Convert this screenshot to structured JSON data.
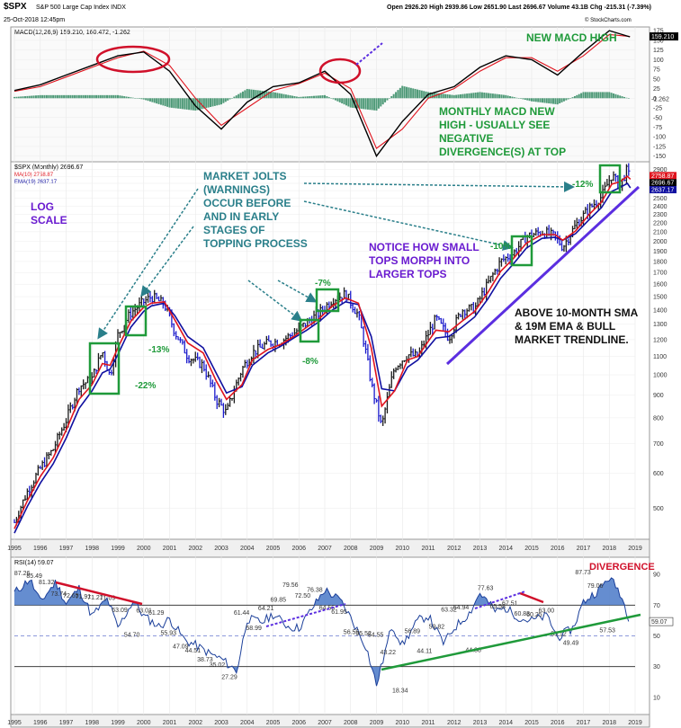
{
  "header": {
    "symbol": "$SPX",
    "name": "S&P 500 Large Cap Index INDX",
    "date": "25-Oct-2018 12:45pm",
    "ohlc": "Open 2926.20  High 2939.86  Low 2651.90  Last 2696.67  Volume 43.1B  Chg -215.31 (-7.39%)",
    "credit": "© StockCharts.com"
  },
  "panels": {
    "macd": {
      "legend": "MACD(12,26,9) 159.210, 160.472, -1.262",
      "last_label": "159.210",
      "hist_label": "-1.262",
      "ticks": [
        "175",
        "150",
        "125",
        "100",
        "75",
        "50",
        "25",
        "0",
        "-25",
        "-50",
        "-75",
        "-100",
        "-125",
        "-150"
      ],
      "notes": [
        "NEW MACD HIGH",
        "MONTHLY MACD NEW",
        "HIGH - USUALLY SEE",
        "NEGATIVE",
        "DIVERGENCE(S) AT TOP"
      ]
    },
    "price": {
      "legend_main": "$SPX (Monthly) 2696.67",
      "legend_sma": "MA(10) 2758.87",
      "legend_ema": "EMA(19) 2637.17",
      "last_labels": [
        "2758.87",
        "2696.67",
        "2637.17"
      ],
      "ticks": [
        "2900",
        "2800",
        "2700",
        "2600",
        "2500",
        "2400",
        "2300",
        "2200",
        "2100",
        "2000",
        "1900",
        "1800",
        "1700",
        "1600",
        "1500",
        "1400",
        "1300",
        "1200",
        "1100",
        "1000",
        "900",
        "800",
        "700",
        "600",
        "500"
      ],
      "log_note": [
        "LOG",
        "SCALE"
      ],
      "jolts_note": [
        "MARKET JOLTS",
        "(WARNINGS)",
        "OCCUR BEFORE",
        "AND IN EARLY",
        "STAGES OF",
        "TOPPING PROCESS"
      ],
      "morph_note": [
        "NOTICE HOW SMALL",
        "TOPS MORPH INTO",
        "LARGER TOPS"
      ],
      "trend_note": [
        "ABOVE 10-MONTH SMA",
        "& 19M EMA & BULL",
        "MARKET TRENDLINE."
      ],
      "pct_labels": [
        "-22%",
        "-13%",
        "-8%",
        "-7%",
        "-10%",
        "-12%"
      ]
    },
    "rsi": {
      "legend": "RSI(14) 59.07",
      "last_label": "59.07",
      "title_note": "DIVERGENCE",
      "ticks": [
        "90",
        "70",
        "50",
        "30",
        "10"
      ],
      "value_labels": [
        "87.26",
        "85.49",
        "81.32",
        "73.74",
        "72.65",
        "71.91",
        "71.21",
        "71.09",
        "63.09",
        "54.70",
        "63.01",
        "61.29",
        "55.93",
        "47.09",
        "44.51",
        "38.73",
        "35.02",
        "27.29",
        "61.44",
        "58.99",
        "64.21",
        "69.85",
        "79.56",
        "72.50",
        "76.38",
        "64.55",
        "61.95",
        "56.55",
        "55.52",
        "54.55",
        "43.22",
        "18.34",
        "56.89",
        "44.11",
        "59.82",
        "63.32",
        "64.94",
        "44.88",
        "77.63",
        "65.58",
        "67.51",
        "60.83",
        "60.25",
        "63.00",
        "55.12",
        "49.49",
        "87.73",
        "79.06",
        "57.53"
      ]
    }
  },
  "x_axis_years": [
    "1995",
    "1996",
    "1997",
    "1998",
    "1999",
    "2000",
    "2001",
    "2002",
    "2003",
    "2004",
    "2005",
    "2006",
    "2007",
    "2008",
    "2009",
    "2010",
    "2011",
    "2012",
    "2013",
    "2014",
    "2015",
    "2016",
    "2017",
    "2018",
    "2019"
  ],
  "colors": {
    "price_up": "#1a1a1a",
    "price_down": "#1a1acc",
    "sma10": "#e0141e",
    "ema19": "#1010a0",
    "macd_line": "#000000",
    "signal_line": "#e0141e",
    "histogram": "#4f9a78",
    "rsi_line": "#1b3f9a",
    "rsi_fill": "#4a79c8",
    "annotation_green": "#1f9a3a",
    "annotation_teal": "#2a7f8a",
    "annotation_purple": "#6a1bd0",
    "trendline": "#5b2ee0",
    "highlight_red": "#d0102a"
  },
  "chart_data": [
    {
      "type": "line",
      "title": "MACD(12,26,9)",
      "ylim": [
        -160,
        180
      ],
      "x": [
        1995,
        1996,
        1997,
        1998,
        1999,
        2000,
        2001,
        2002,
        2003,
        2004,
        2005,
        2006,
        2007,
        2008,
        2009,
        2010,
        2011,
        2012,
        2013,
        2014,
        2015,
        2016,
        2017,
        2018,
        2018.8
      ],
      "series": [
        {
          "name": "MACD",
          "values": [
            20,
            35,
            60,
            85,
            110,
            120,
            70,
            -20,
            -80,
            -10,
            30,
            40,
            70,
            10,
            -150,
            -60,
            10,
            30,
            80,
            110,
            100,
            60,
            120,
            175,
            159
          ]
        },
        {
          "name": "Signal",
          "values": [
            18,
            30,
            55,
            80,
            105,
            122,
            85,
            0,
            -70,
            -25,
            20,
            38,
            65,
            25,
            -130,
            -80,
            0,
            25,
            70,
            105,
            105,
            70,
            110,
            165,
            160
          ]
        }
      ]
    },
    {
      "type": "line",
      "title": "$SPX (Monthly)",
      "ylim": [
        430,
        2950
      ],
      "scale": "log",
      "x": [
        1995,
        1995.5,
        1996,
        1996.5,
        1997,
        1997.5,
        1998,
        1998.4,
        1998.7,
        1999,
        1999.5,
        2000,
        2000.3,
        2000.8,
        2001.2,
        2001.7,
        2002.3,
        2002.8,
        2003.2,
        2003.8,
        2004.2,
        2004.8,
        2005.3,
        2005.8,
        2006.3,
        2006.8,
        2007.3,
        2007.8,
        2008.3,
        2008.8,
        2009.2,
        2009.7,
        2010.2,
        2010.6,
        2011.3,
        2011.8,
        2012.3,
        2012.8,
        2013.3,
        2013.8,
        2014.3,
        2014.8,
        2015.4,
        2015.9,
        2016.2,
        2016.7,
        2017.2,
        2017.7,
        2018.1,
        2018.4,
        2018.7,
        2018.82
      ],
      "series": [
        {
          "name": "$SPX",
          "values": [
            465,
            545,
            615,
            680,
            790,
            940,
            980,
            1130,
            990,
            1230,
            1380,
            1460,
            1500,
            1440,
            1250,
            1100,
            1050,
            880,
            820,
            1030,
            1120,
            1180,
            1190,
            1240,
            1310,
            1380,
            1480,
            1520,
            1360,
            950,
            760,
            1040,
            1110,
            1100,
            1340,
            1210,
            1400,
            1410,
            1600,
            1800,
            1880,
            2050,
            2100,
            2050,
            1940,
            2170,
            2360,
            2520,
            2820,
            2650,
            2910,
            2697
          ]
        },
        {
          "name": "MA(10)",
          "values": [
            450,
            520,
            590,
            650,
            750,
            880,
            950,
            1060,
            1050,
            1150,
            1320,
            1420,
            1450,
            1460,
            1330,
            1180,
            1120,
            970,
            880,
            950,
            1080,
            1140,
            1170,
            1220,
            1280,
            1340,
            1430,
            1490,
            1450,
            1150,
            850,
            920,
            1080,
            1100,
            1260,
            1250,
            1320,
            1390,
            1530,
            1710,
            1830,
            1980,
            2070,
            2070,
            2010,
            2110,
            2290,
            2450,
            2690,
            2720,
            2800,
            2759
          ]
        },
        {
          "name": "EMA(19)",
          "values": [
            440,
            505,
            570,
            630,
            720,
            840,
            920,
            1010,
            1030,
            1110,
            1280,
            1390,
            1430,
            1450,
            1360,
            1220,
            1150,
            1010,
            910,
            940,
            1050,
            1120,
            1160,
            1210,
            1260,
            1320,
            1400,
            1460,
            1440,
            1220,
            930,
            920,
            1040,
            1080,
            1210,
            1220,
            1280,
            1350,
            1480,
            1650,
            1780,
            1930,
            2030,
            2040,
            2010,
            2080,
            2230,
            2380,
            2590,
            2640,
            2700,
            2637
          ]
        }
      ],
      "annotations": [
        "-22%",
        "-13%",
        "-8%",
        "-7%",
        "-10%",
        "-12%"
      ]
    },
    {
      "type": "line",
      "title": "RSI(14)",
      "ylim": [
        0,
        100
      ],
      "x": [
        1995,
        1995.6,
        1996,
        1996.6,
        1997,
        1997.5,
        1998,
        1998.6,
        1999,
        1999.6,
        2000,
        2000.6,
        2001,
        2001.6,
        2002,
        2002.6,
        2003,
        2003.6,
        2004,
        2004.6,
        2005,
        2005.6,
        2006,
        2006.6,
        2007,
        2007.6,
        2008,
        2008.6,
        2009,
        2009.6,
        2010,
        2010.6,
        2011,
        2011.6,
        2012,
        2012.6,
        2013,
        2013.6,
        2014,
        2014.6,
        2015,
        2015.6,
        2016,
        2016.6,
        2017,
        2017.6,
        2018,
        2018.4,
        2018.82
      ],
      "series": [
        {
          "name": "RSI(14)",
          "values": [
            78,
            87,
            72,
            85,
            71,
            81,
            63,
            74,
            55,
            73,
            63,
            56,
            61,
            47,
            44,
            38,
            35,
            27,
            61,
            59,
            64,
            56,
            55,
            70,
            80,
            73,
            62,
            43,
            18,
            57,
            44,
            60,
            63,
            45,
            55,
            65,
            78,
            66,
            68,
            61,
            60,
            63,
            49,
            55,
            72,
            80,
            88,
            79,
            59
          ]
        }
      ],
      "reference_lines": [
        70,
        30
      ]
    }
  ]
}
